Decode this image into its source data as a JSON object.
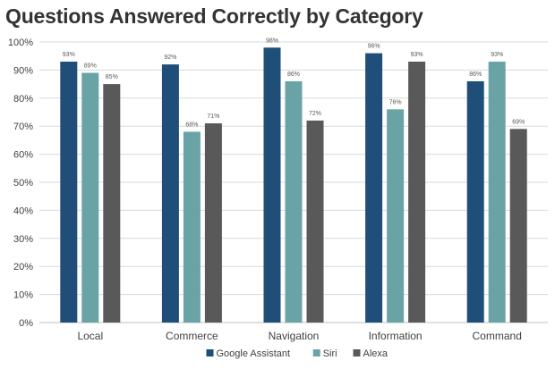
{
  "colors": {
    "Google Assistant": "#1f4e79",
    "Siri": "#6aa3a6",
    "Alexa": "#595959",
    "grid": "#d9d9d9",
    "axis_text": "#404040"
  },
  "chart_data": {
    "type": "bar",
    "title": "Questions Answered Correctly by Category",
    "categories": [
      "Local",
      "Commerce",
      "Navigation",
      "Information",
      "Command"
    ],
    "series": [
      {
        "name": "Google Assistant",
        "values": [
          93,
          92,
          98,
          96,
          86
        ],
        "labels": [
          "93%",
          "92%",
          "98%",
          "96%",
          "86%"
        ]
      },
      {
        "name": "Siri",
        "values": [
          89,
          68,
          86,
          76,
          93
        ],
        "labels": [
          "89%",
          "68%",
          "86%",
          "76%",
          "93%"
        ]
      },
      {
        "name": "Alexa",
        "values": [
          85,
          71,
          72,
          93,
          69
        ],
        "labels": [
          "85%",
          "71%",
          "72%",
          "93%",
          "69%"
        ]
      }
    ],
    "ylim": [
      0,
      100
    ],
    "yticks": [
      0,
      10,
      20,
      30,
      40,
      50,
      60,
      70,
      80,
      90,
      100
    ],
    "ytick_labels": [
      "0%",
      "10%",
      "20%",
      "30%",
      "40%",
      "50%",
      "60%",
      "70%",
      "80%",
      "90%",
      "100%"
    ],
    "xlabel": "",
    "ylabel": "",
    "grid": true,
    "legend_position": "bottom-center"
  }
}
